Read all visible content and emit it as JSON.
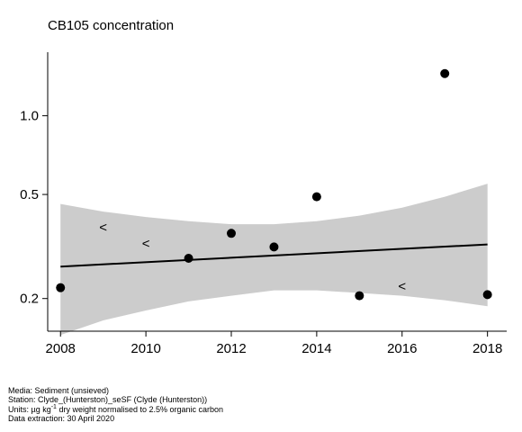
{
  "chart_data": {
    "type": "scatter",
    "title": "CB105 concentration",
    "xlabel": "",
    "ylabel": "",
    "y_scale": "log",
    "xlim": [
      2007.7,
      2018.45
    ],
    "ylim": [
      0.15,
      1.75
    ],
    "x_ticks": [
      2008,
      2010,
      2012,
      2014,
      2016,
      2018
    ],
    "x_tick_labels": [
      "2008",
      "2010",
      "2012",
      "2014",
      "2016",
      "2018"
    ],
    "y_ticks": [
      0.2,
      0.5,
      1.0
    ],
    "y_tick_labels": [
      "0.2",
      "0.5",
      "1.0"
    ],
    "points": [
      {
        "x": 2008,
        "y": 0.22
      },
      {
        "x": 2011,
        "y": 0.285
      },
      {
        "x": 2012,
        "y": 0.355
      },
      {
        "x": 2013,
        "y": 0.315
      },
      {
        "x": 2014,
        "y": 0.49
      },
      {
        "x": 2015,
        "y": 0.205
      },
      {
        "x": 2017,
        "y": 1.45
      },
      {
        "x": 2018,
        "y": 0.207
      }
    ],
    "less_than_markers": [
      {
        "x": 2009,
        "y": 0.375,
        "label": "<"
      },
      {
        "x": 2010,
        "y": 0.325,
        "label": "<"
      },
      {
        "x": 2016,
        "y": 0.223,
        "label": "<"
      }
    ],
    "trend": {
      "x": [
        2008,
        2018
      ],
      "y": [
        0.265,
        0.322
      ]
    },
    "confidence_band": {
      "x": [
        2008,
        2009,
        2010,
        2011,
        2012,
        2013,
        2014,
        2015,
        2016,
        2017,
        2018
      ],
      "lower": [
        0.145,
        0.165,
        0.18,
        0.195,
        0.205,
        0.215,
        0.215,
        0.21,
        0.205,
        0.197,
        0.187
      ],
      "upper": [
        0.46,
        0.43,
        0.41,
        0.395,
        0.385,
        0.385,
        0.395,
        0.415,
        0.445,
        0.49,
        0.55
      ]
    },
    "colors": {
      "band": "#cccccc",
      "line": "#000000",
      "point": "#000000"
    }
  },
  "footer": {
    "media": "Media: Sediment (unsieved)",
    "station": "Station: Clyde_(Hunterston)_seSF (Clyde (Hunterston))",
    "units_prefix": "Units:  µg kg",
    "units_sup": "-1",
    "units_suffix": " dry weight normalised to 2.5% organic carbon",
    "extraction": "Data extraction: 30 April 2020"
  }
}
